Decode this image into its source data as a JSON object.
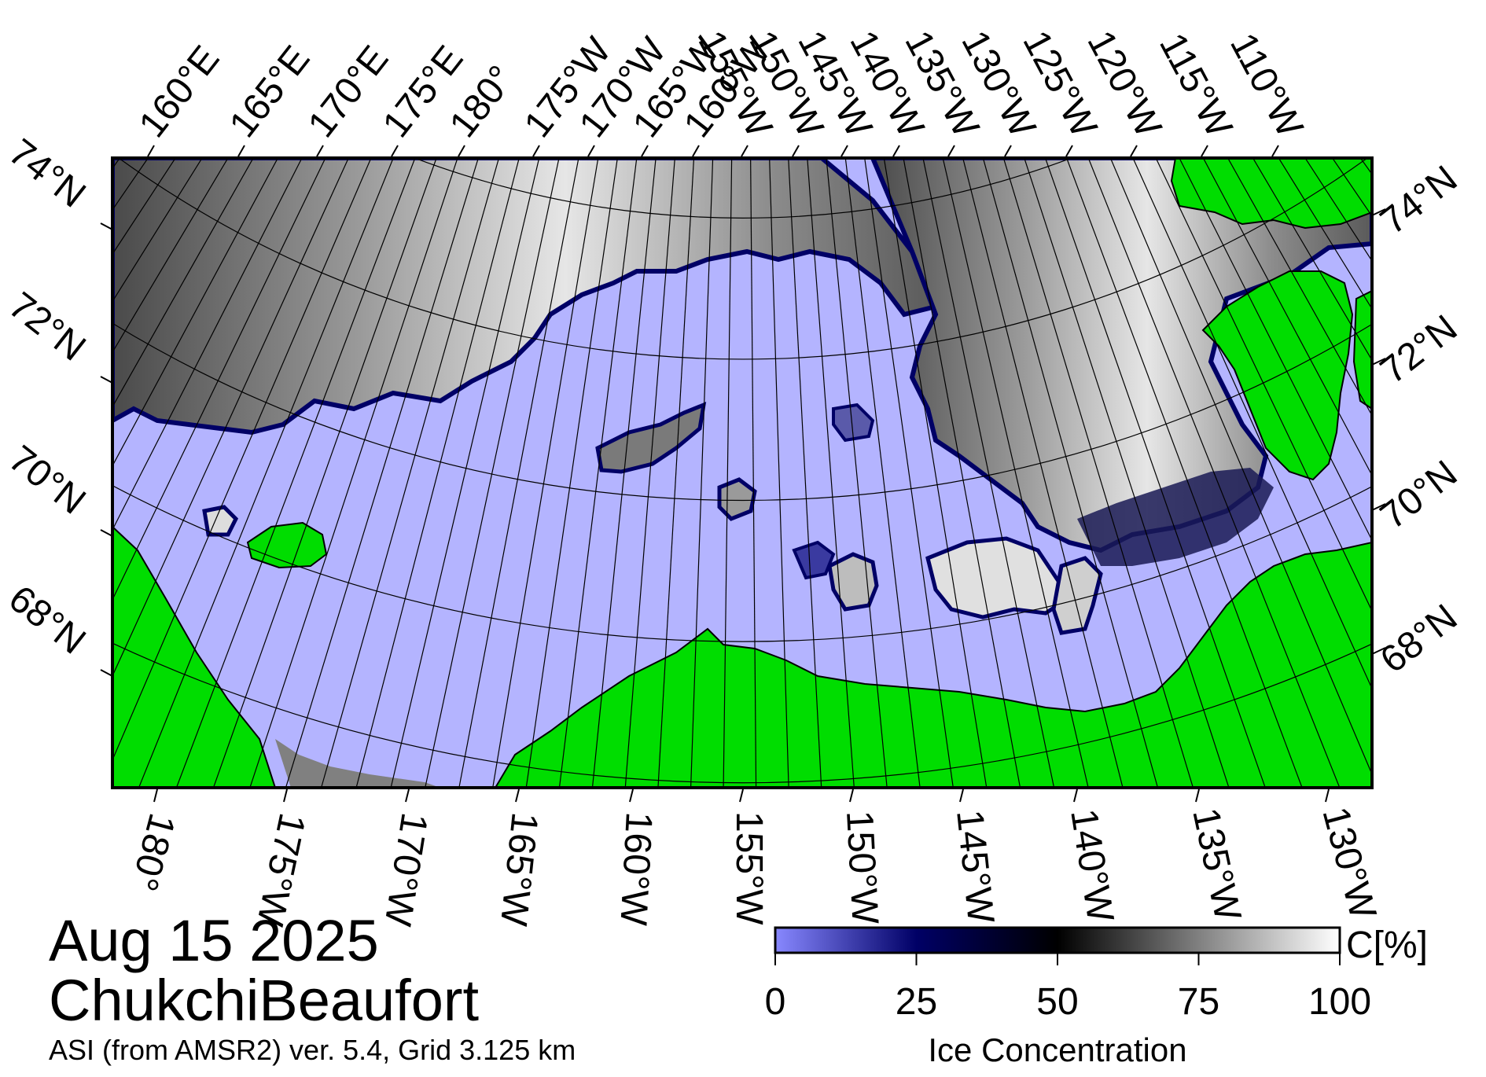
{
  "date_title": "Aug 15 2025",
  "region_title": "ChukchiBeaufort",
  "source_note": "ASI (from AMSR2) ver. 5.4,  Grid 3.125 km",
  "top_lon_labels": [
    "160°E",
    "165°E",
    "170°E",
    "175°E",
    "180°",
    "175°W",
    "170°W",
    "165°W",
    "160°W",
    "155°W",
    "150°W",
    "145°W",
    "140°W",
    "135°W",
    "130°W",
    "125°W",
    "120°W",
    "115°W",
    "110°W"
  ],
  "bottom_lon_labels": [
    "180°",
    "175°W",
    "170°W",
    "165°W",
    "160°W",
    "155°W",
    "150°W",
    "145°W",
    "140°W",
    "135°W",
    "130°W"
  ],
  "left_lat_labels": [
    "74°N",
    "72°N",
    "70°N",
    "68°N"
  ],
  "right_lat_labels": [
    "74°N",
    "72°N",
    "70°N",
    "68°N"
  ],
  "colorbar": {
    "ticks": [
      "0",
      "25",
      "50",
      "75",
      "100"
    ],
    "unit": "C[%]",
    "title": "Ice Concentration",
    "range": [
      0,
      100
    ],
    "stops": [
      {
        "value": 0,
        "color": "#8888ff"
      },
      {
        "value": 25,
        "color": "#000066"
      },
      {
        "value": 50,
        "color": "#000000"
      },
      {
        "value": 75,
        "color": "#808080"
      },
      {
        "value": 100,
        "color": "#ffffff"
      }
    ]
  },
  "colors": {
    "open_water": "#b4b4ff",
    "land": "#00dd00",
    "no_data": "#808080",
    "grid": "#000000"
  }
}
